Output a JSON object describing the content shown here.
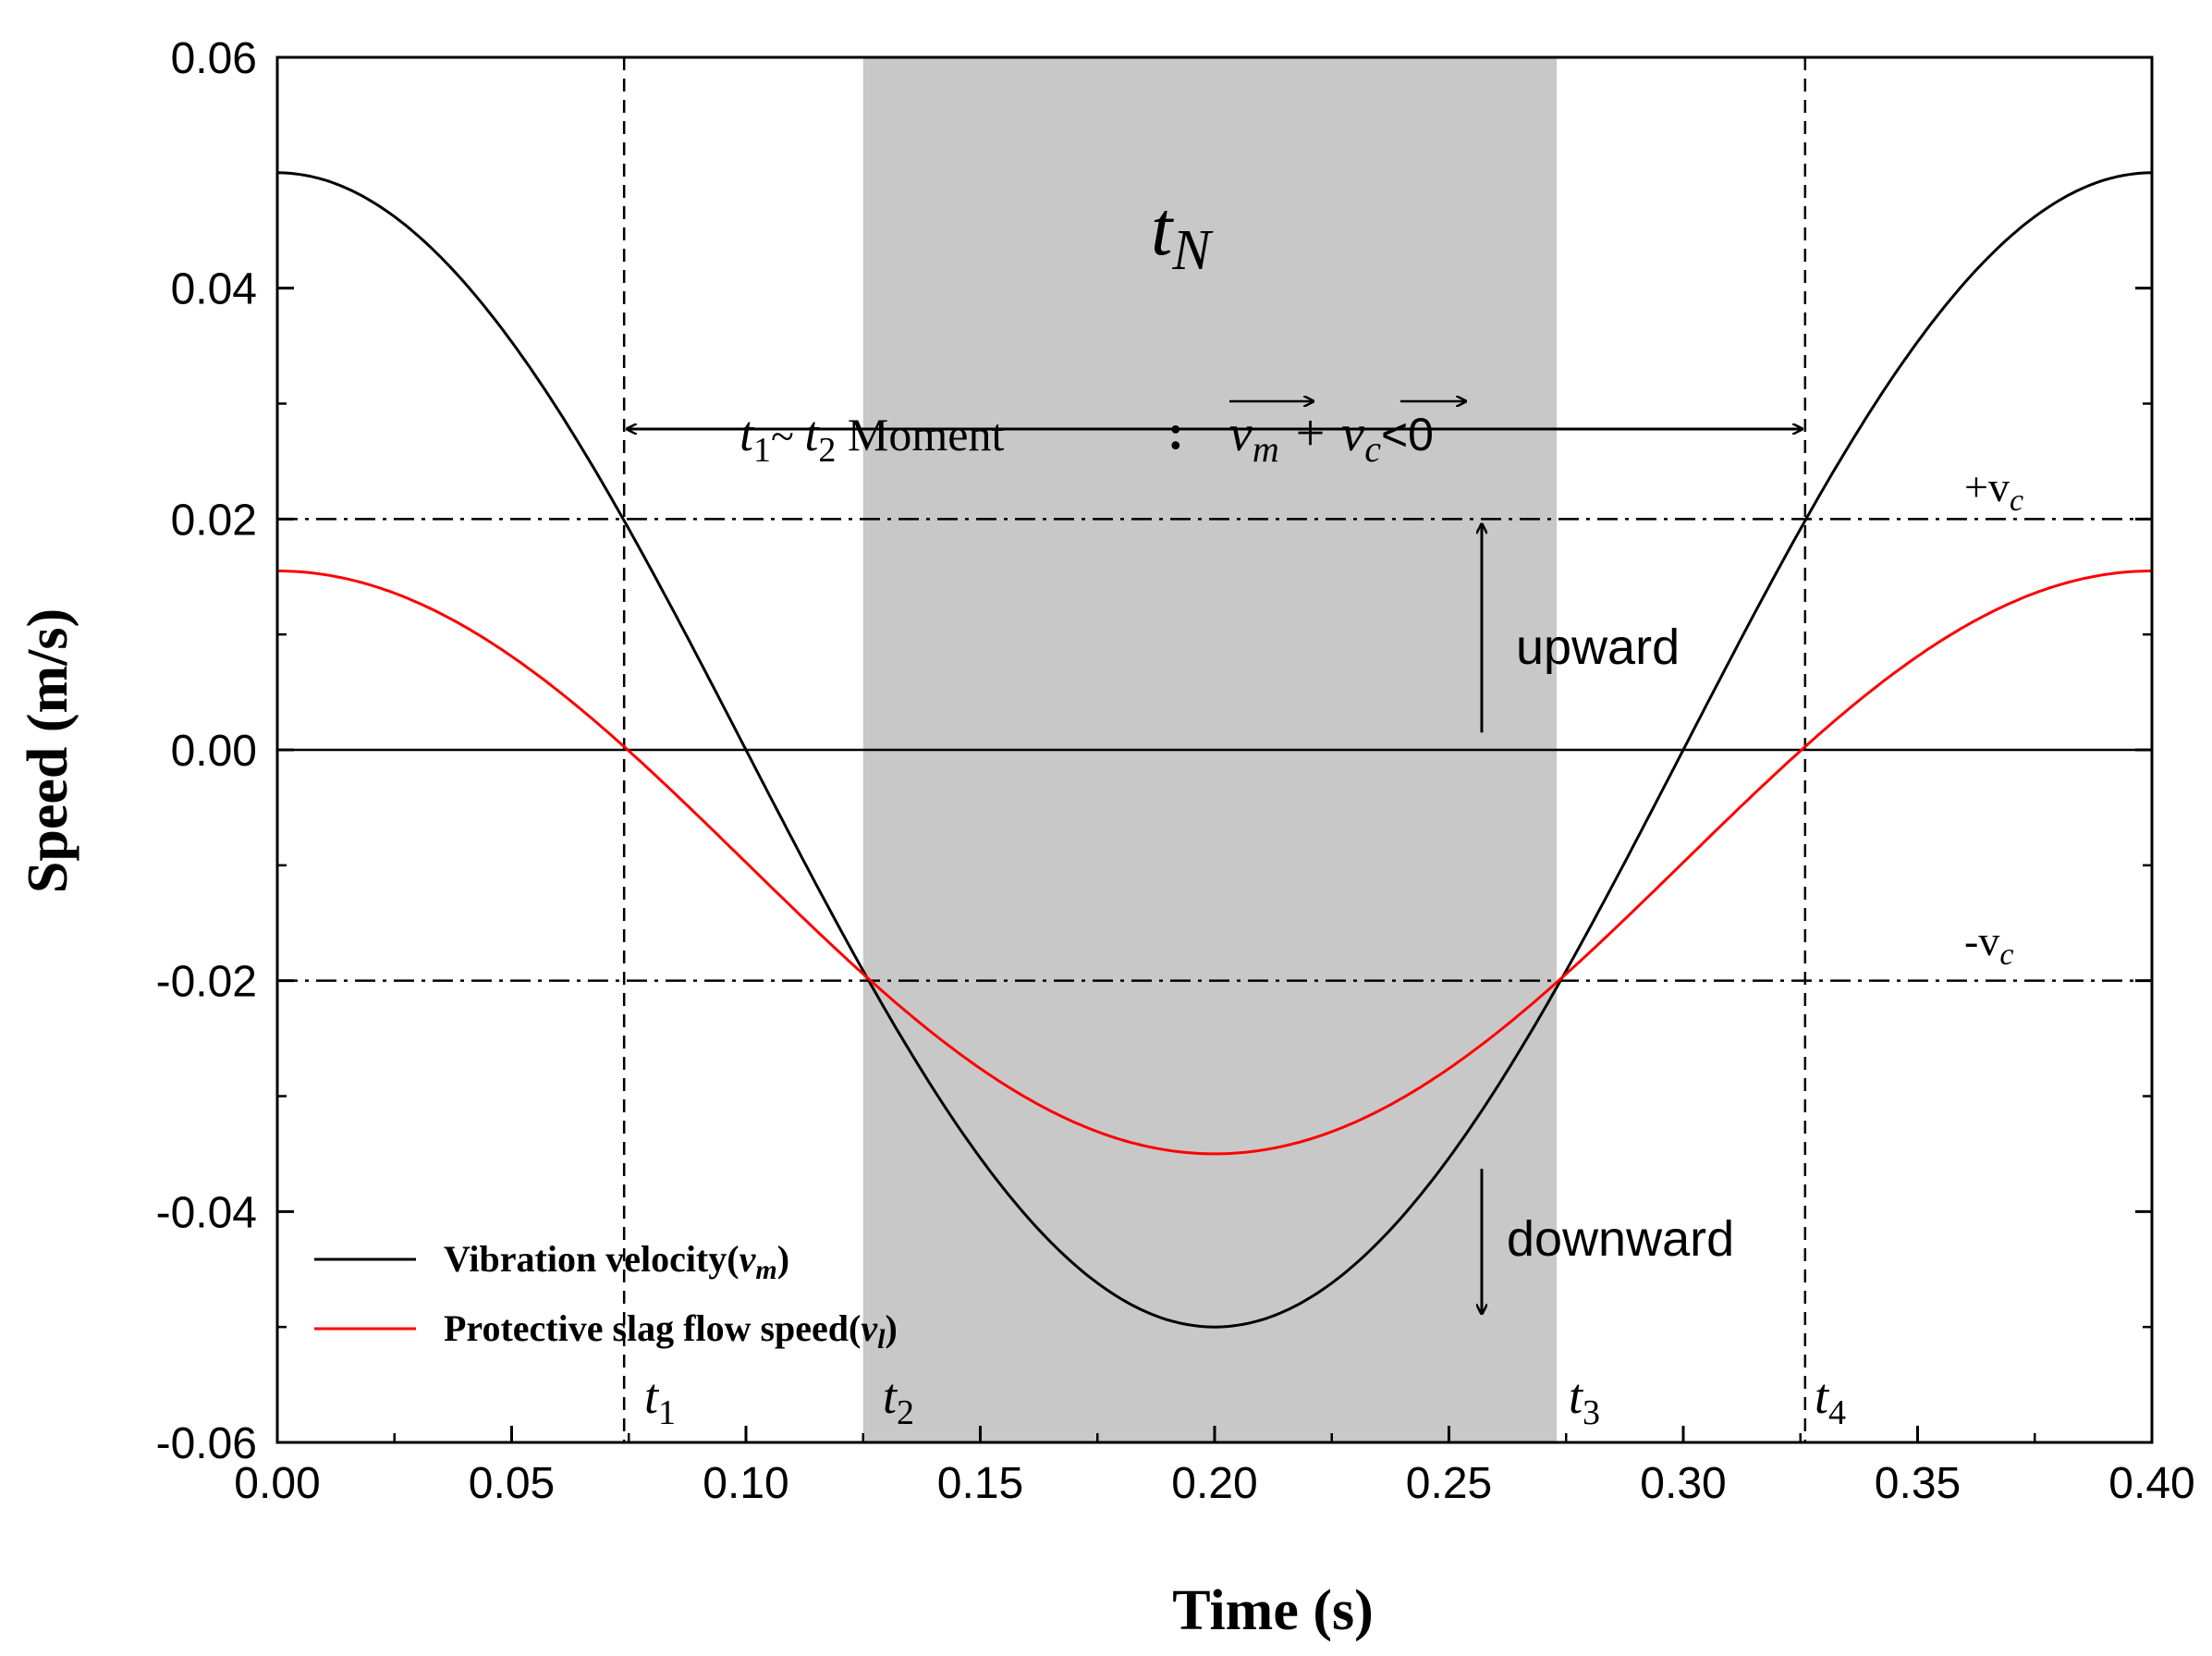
{
  "chart_data": {
    "type": "line",
    "xlabel": "Time (s)",
    "ylabel": "Speed (m/s)",
    "xlim": [
      0.0,
      0.4
    ],
    "ylim": [
      -0.06,
      0.06
    ],
    "xticks": [
      "0.00",
      "0.05",
      "0.10",
      "0.15",
      "0.20",
      "0.25",
      "0.30",
      "0.35",
      "0.40"
    ],
    "yticks": [
      "-0.06",
      "-0.04",
      "-0.02",
      "0.00",
      "0.02",
      "0.04",
      "0.06"
    ],
    "grid": false,
    "legend_position": "bottom-left",
    "series": [
      {
        "name": "Vibration velocity",
        "symbol": "v",
        "subscript": "m",
        "color": "#000000",
        "x": [
          0.0,
          0.02,
          0.04,
          0.06,
          0.075,
          0.1,
          0.125,
          0.15,
          0.175,
          0.2,
          0.225,
          0.25,
          0.275,
          0.3,
          0.325,
          0.34,
          0.36,
          0.38,
          0.4
        ],
        "y": [
          0.05,
          0.0476,
          0.0405,
          0.0294,
          0.0192,
          0.0,
          -0.0192,
          -0.0354,
          -0.0462,
          -0.05,
          -0.0462,
          -0.0354,
          -0.0192,
          0.0,
          0.0192,
          0.0294,
          0.0405,
          0.0476,
          0.05
        ]
      },
      {
        "name": "Protective slag flow speed",
        "symbol": "v",
        "subscript": "l",
        "color": "#ff0000",
        "x": [
          0.0,
          0.02,
          0.04,
          0.06,
          0.075,
          0.1,
          0.125,
          0.15,
          0.175,
          0.2,
          0.225,
          0.25,
          0.275,
          0.3,
          0.325,
          0.34,
          0.36,
          0.38,
          0.4
        ],
        "y": [
          0.0155,
          0.0147,
          0.0122,
          0.0082,
          0.0,
          -0.0095,
          -0.02,
          -0.0288,
          -0.0335,
          -0.035,
          -0.0335,
          -0.0288,
          -0.02,
          -0.0095,
          0.0,
          0.0082,
          0.0122,
          0.0147,
          0.0155
        ]
      }
    ],
    "shaded_region": {
      "x": [
        0.125,
        0.273
      ],
      "color": "#c8c8c8"
    },
    "reference_lines": {
      "horizontal": [
        {
          "y": 0.02,
          "style": "dash-dot",
          "label": "+v",
          "subscript": "c"
        },
        {
          "y": -0.02,
          "style": "dash-dot",
          "label": "-v",
          "subscript": "c"
        },
        {
          "y": 0.0,
          "style": "solid"
        }
      ],
      "vertical": [
        {
          "x": 0.074,
          "style": "dashed"
        },
        {
          "x": 0.326,
          "style": "dashed"
        }
      ]
    },
    "time_markers": [
      {
        "x": 0.074,
        "label": "t",
        "sub": "1"
      },
      {
        "x": 0.125,
        "label": "t",
        "sub": "2"
      },
      {
        "x": 0.273,
        "label": "t",
        "sub": "3"
      },
      {
        "x": 0.326,
        "label": "t",
        "sub": "4"
      }
    ],
    "annotations": {
      "region_label": {
        "main": "t",
        "sub": "N"
      },
      "span_arrow": {
        "x": [
          0.074,
          0.326
        ],
        "y": 0.0278
      },
      "moment_text": {
        "t1": "t",
        "t1_sub": "1",
        "tilde": "~ ",
        "t2": "t",
        "t2_sub": "2",
        "word": " Moment",
        "colon": ":",
        "vm": "v",
        "vm_sub": "m",
        "plus": "+",
        "vc": "v",
        "vc_sub": "c",
        "rel": "<0"
      },
      "upward": {
        "text": "upward",
        "x": 0.257,
        "y": 0.0105
      },
      "downward": {
        "text": "downward",
        "x": 0.257,
        "y": -0.043
      }
    }
  }
}
